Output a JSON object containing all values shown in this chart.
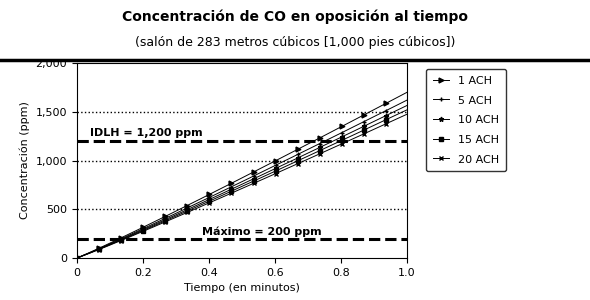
{
  "title": "Concentración de CO en oposición al tiempo",
  "subtitle": "(salón de 283 metros cúbicos [1,000 pies cúbicos])",
  "xlabel": "Tiempo (en minutos)",
  "ylabel": "Concentración (ppm)",
  "xlim": [
    0,
    1
  ],
  "ylim": [
    0,
    2000
  ],
  "xticks": [
    0,
    0.2,
    0.4,
    0.6,
    0.8,
    1.0
  ],
  "yticks": [
    0,
    500,
    1000,
    1500,
    2000
  ],
  "ytick_labels": [
    "0",
    "500",
    "1,000",
    "1,500",
    "2,000"
  ],
  "dotted_hlines": [
    500,
    1000,
    1500
  ],
  "dashed_hlines": [
    200,
    1200
  ],
  "idlh_label": "IDLH = 1,200 ppm",
  "max_label": "Máximo = 200 ppm",
  "achs": [
    1,
    5,
    10,
    15,
    20
  ],
  "labels": [
    "1 ACH",
    "5 ACH",
    "10 ACH",
    "15 ACH",
    "20 ACH"
  ],
  "markers": [
    ">",
    "+",
    "*",
    "s",
    "x"
  ],
  "end_values": [
    1700,
    1620,
    1565,
    1520,
    1475
  ],
  "generation_rate": 1700,
  "background_color": "#ffffff",
  "title_fontsize": 10,
  "label_fontsize": 8,
  "tick_fontsize": 8,
  "legend_fontsize": 8,
  "annotation_fontsize": 8
}
